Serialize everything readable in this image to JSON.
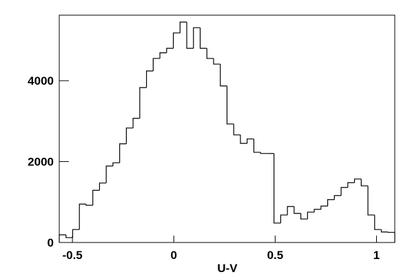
{
  "chart_data": {
    "type": "histogram",
    "x_label": "U-V",
    "bins": [
      -0.565,
      -0.5319,
      -0.4988,
      -0.4657,
      -0.4326,
      -0.3995,
      -0.3664,
      -0.3333,
      -0.3002,
      -0.2671,
      -0.234,
      -0.2009,
      -0.1678,
      -0.1347,
      -0.1016,
      -0.0685,
      -0.0354,
      -0.0023,
      0.0308,
      0.0639,
      0.097,
      0.1301,
      0.1632,
      0.1963,
      0.2294,
      0.2625,
      0.2956,
      0.3287,
      0.3618,
      0.3949,
      0.428,
      0.4611,
      0.4942,
      0.5273,
      0.5604,
      0.5935,
      0.6266,
      0.6597,
      0.6928,
      0.7259,
      0.759,
      0.7921,
      0.8252,
      0.8583,
      0.8914,
      0.9245,
      0.9576,
      0.9907,
      1.0238,
      1.0569,
      1.09
    ],
    "values": [
      190,
      120,
      320,
      950,
      920,
      1290,
      1470,
      1890,
      1970,
      2440,
      2830,
      3070,
      3830,
      4240,
      4550,
      4690,
      4800,
      5180,
      5450,
      4800,
      5310,
      4800,
      4550,
      4410,
      3870,
      2930,
      2660,
      2450,
      2560,
      2230,
      2200,
      2200,
      480,
      680,
      890,
      720,
      580,
      750,
      820,
      900,
      1060,
      1160,
      1360,
      1480,
      1570,
      1400,
      680,
      320,
      260,
      250
    ],
    "color": "#000000",
    "xlim": [
      -0.565,
      1.09
    ],
    "ylim": [
      0,
      5620
    ],
    "xticks": [
      -0.5,
      0,
      0.5,
      1
    ],
    "yticks": [
      0,
      2000,
      4000
    ]
  }
}
